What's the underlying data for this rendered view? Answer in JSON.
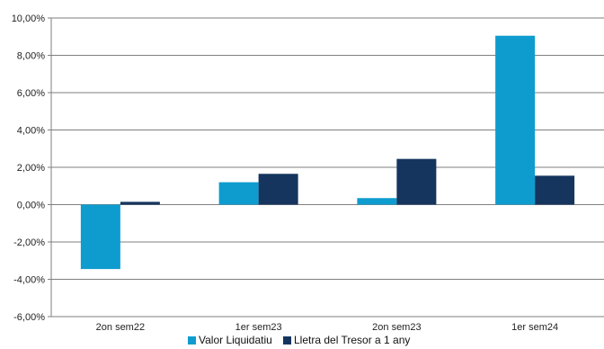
{
  "chart_data": {
    "type": "bar",
    "categories": [
      "2on sem22",
      "1er sem23",
      "2on sem23",
      "1er sem24"
    ],
    "series": [
      {
        "name": "Valor Liquidatiu",
        "color": "#0e9ccf",
        "values": [
          -3.45,
          1.2,
          0.35,
          9.05
        ]
      },
      {
        "name": "Lletra del Tresor a 1 any",
        "color": "#15355e",
        "values": [
          0.15,
          1.65,
          2.45,
          1.55
        ]
      }
    ],
    "ylim": [
      -6,
      10
    ],
    "ytick_step": 2,
    "ytick_labels": [
      "-6,00%",
      "-4,00%",
      "-2,00%",
      "0,00%",
      "2,00%",
      "4,00%",
      "6,00%",
      "8,00%",
      "10,00%"
    ],
    "grid": true,
    "legend_position": "bottom-center",
    "title": "",
    "xlabel": "",
    "ylabel": ""
  }
}
